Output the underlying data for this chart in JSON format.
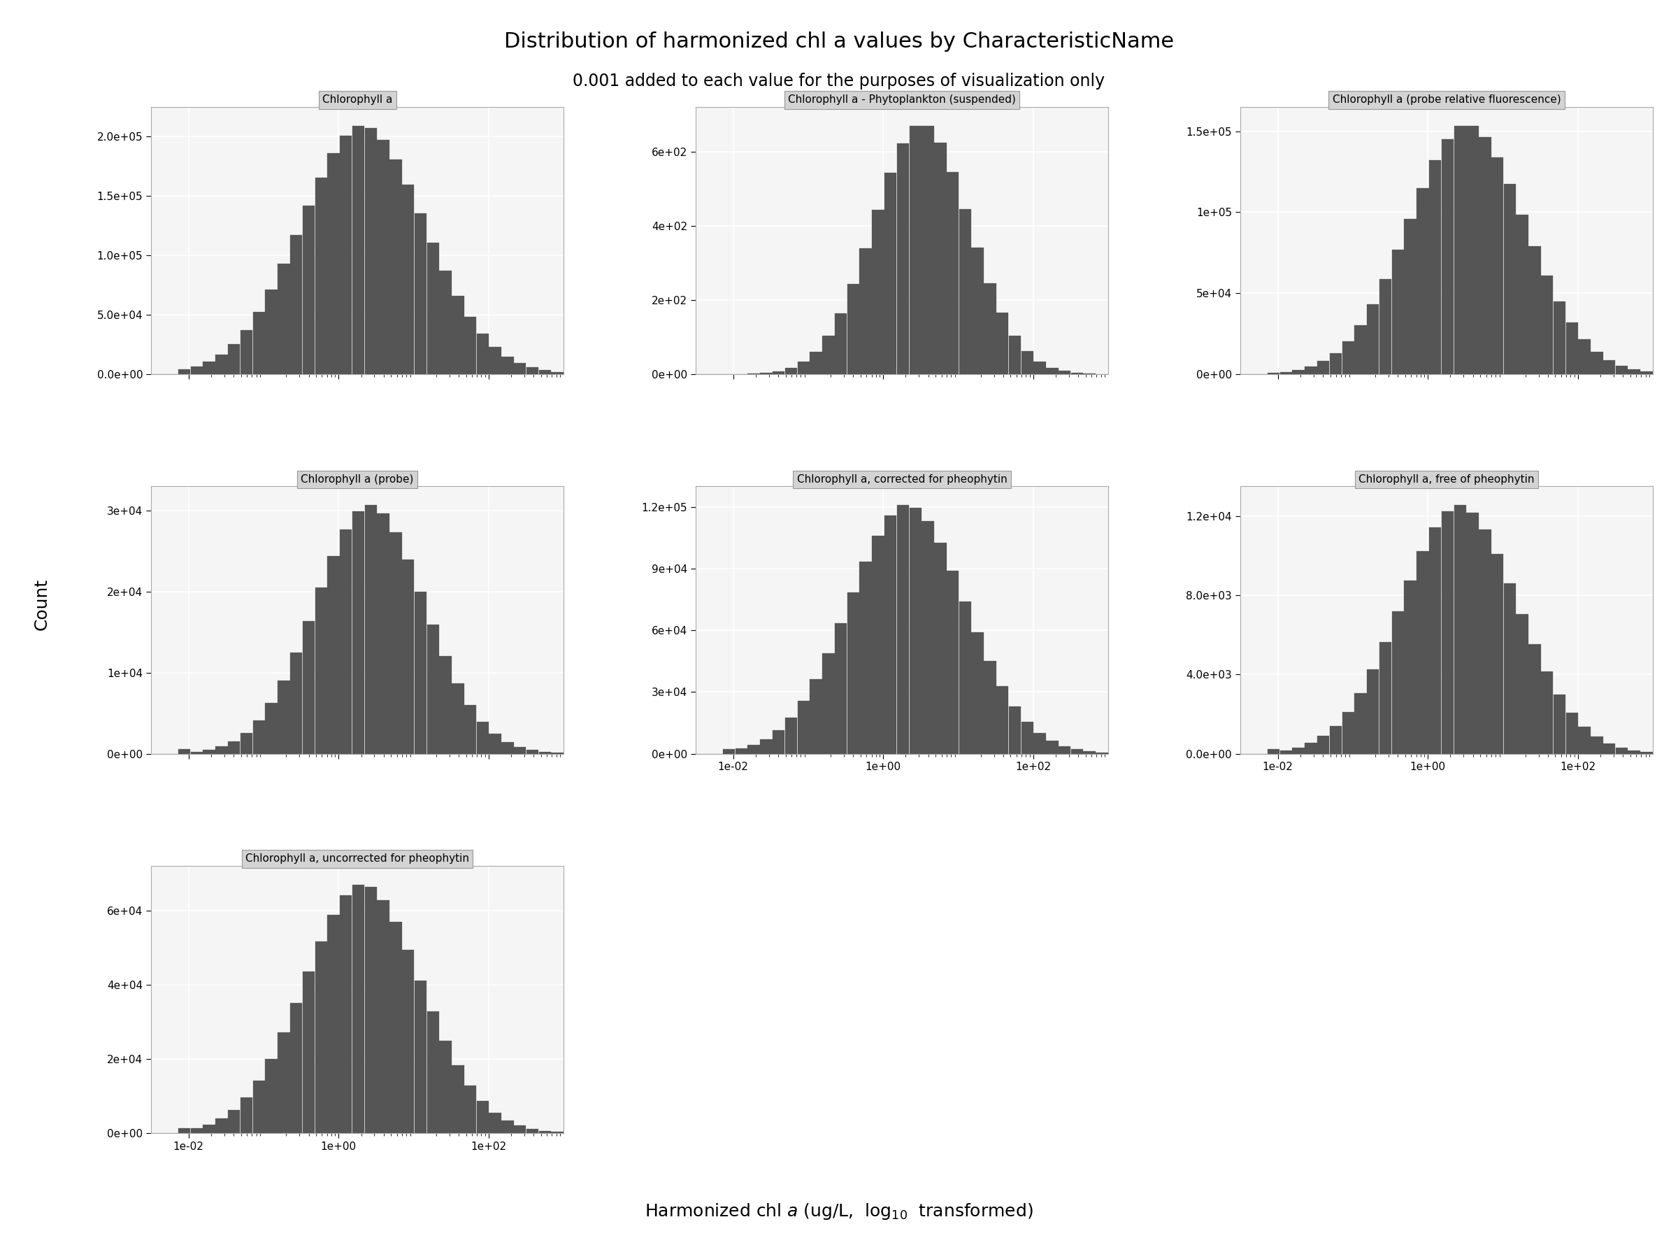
{
  "title": "Distribution of harmonized chl a values by CharacteristicName",
  "subtitle": "0.001 added to each value for the purposes of visualization only",
  "ylabel": "Count",
  "bar_color": "#555555",
  "panel_title_bg": "#d3d3d3",
  "panel_bg": "#f5f5f5",
  "grid_color": "#ffffff",
  "panels": [
    {
      "title": "Chlorophyll a",
      "row": 0,
      "col": 0,
      "yticks": [
        0,
        50000,
        100000,
        150000,
        200000
      ],
      "ytick_labels": [
        "0.0e+00",
        "5.0e+04",
        "1.0e+05",
        "1.5e+05",
        "2.0e+05"
      ],
      "ymax": 225000,
      "has_small_left_bar": true,
      "mu": 0.3,
      "sigma": 0.85
    },
    {
      "title": "Chlorophyll a - Phytoplankton (suspended)",
      "row": 0,
      "col": 1,
      "yticks": [
        0,
        200,
        400,
        600
      ],
      "ytick_labels": [
        "0e+00",
        "2e+02",
        "4e+02",
        "6e+02"
      ],
      "ymax": 720,
      "has_small_left_bar": false,
      "mu": 0.5,
      "sigma": 0.65
    },
    {
      "title": "Chlorophyll a (probe relative fluorescence)",
      "row": 0,
      "col": 2,
      "yticks": [
        0,
        50000,
        100000,
        150000
      ],
      "ytick_labels": [
        "0e+00",
        "5e+04",
        "1e+05",
        "1.5e+05"
      ],
      "ymax": 165000,
      "has_small_left_bar": false,
      "mu": 0.5,
      "sigma": 0.8
    },
    {
      "title": "Chlorophyll a (probe)",
      "row": 1,
      "col": 0,
      "yticks": [
        0,
        10000,
        20000,
        30000
      ],
      "ytick_labels": [
        "0e+00",
        "1e+04",
        "2e+04",
        "3e+04"
      ],
      "ymax": 33000,
      "has_small_left_bar": true,
      "mu": 0.4,
      "sigma": 0.75
    },
    {
      "title": "Chlorophyll a, corrected for pheophytin",
      "row": 1,
      "col": 1,
      "yticks": [
        0,
        30000,
        60000,
        90000,
        120000
      ],
      "ytick_labels": [
        "0e+00",
        "3e+04",
        "6e+04",
        "9e+04",
        "1.2e+05"
      ],
      "ymax": 130000,
      "has_small_left_bar": true,
      "mu": 0.3,
      "sigma": 0.8
    },
    {
      "title": "Chlorophyll a, free of pheophytin",
      "row": 1,
      "col": 2,
      "yticks": [
        0,
        4000,
        8000,
        12000
      ],
      "ytick_labels": [
        "0.0e+00",
        "4.0e+03",
        "8.0e+03",
        "1.2e+04"
      ],
      "ymax": 13500,
      "has_small_left_bar": true,
      "mu": 0.4,
      "sigma": 0.8
    },
    {
      "title": "Chlorophyll a, uncorrected for pheophytin",
      "row": 2,
      "col": 0,
      "yticks": [
        0,
        20000,
        40000,
        60000
      ],
      "ytick_labels": [
        "0e+00",
        "2e+04",
        "4e+04",
        "6e+04"
      ],
      "ymax": 72000,
      "has_small_left_bar": true,
      "mu": 0.3,
      "sigma": 0.8
    }
  ],
  "xlim_log": [
    -2.5,
    3.0
  ],
  "xticks_log": [
    -2,
    0,
    2
  ],
  "xtick_labels": [
    "1e-02",
    "1e+00",
    "1e+02"
  ],
  "n_bins": 35
}
